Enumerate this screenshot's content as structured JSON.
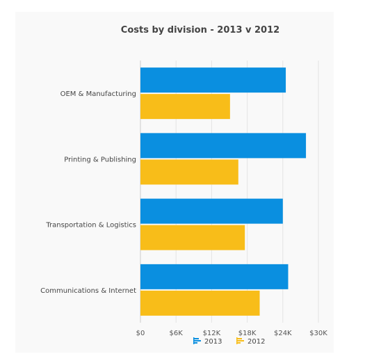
{
  "chart_data": {
    "type": "bar",
    "orientation": "horizontal",
    "title": "Costs by division - 2013 v 2012",
    "categories": [
      "OEM & Manufacturing",
      "Printing & Publishing",
      "Transportation & Logistics",
      "Communications & Internet"
    ],
    "series": [
      {
        "name": "2013",
        "color": "#0a8fe0",
        "values": [
          24500,
          27900,
          24000,
          24900
        ]
      },
      {
        "name": "2012",
        "color": "#f8bd19",
        "values": [
          15100,
          16500,
          17600,
          20100
        ]
      }
    ],
    "x_ticks": [
      "$0",
      "$6K",
      "$12K",
      "$18K",
      "$24K",
      "$30K"
    ],
    "xlim": [
      0,
      30000
    ],
    "grid": true,
    "legend_position": "bottom-center",
    "legend_icons": [
      "bar-chart-icon",
      "bar-chart-icon"
    ]
  }
}
